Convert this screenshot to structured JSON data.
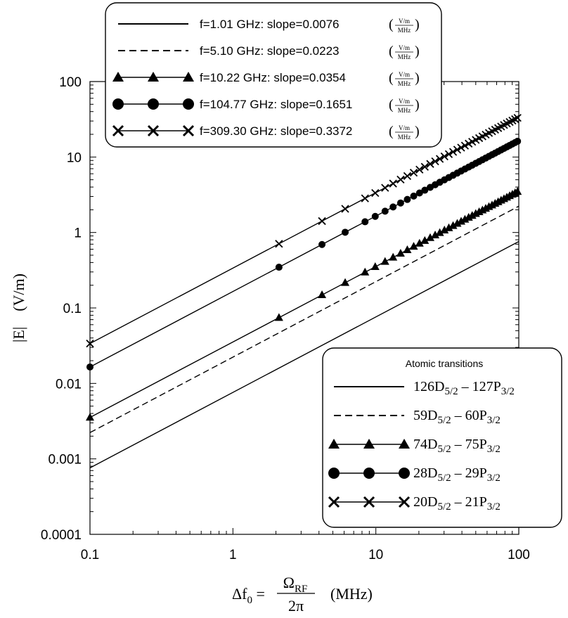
{
  "chart_data": {
    "type": "line",
    "xscale": "log",
    "yscale": "log",
    "xlim": [
      0.1,
      100
    ],
    "ylim": [
      0.0001,
      100
    ],
    "x_ticks": [
      "0.1",
      "1",
      "10",
      "100"
    ],
    "y_ticks": [
      "0.0001",
      "0.001",
      "0.01",
      "0.1",
      "1",
      "10",
      "100"
    ],
    "xlabel": {
      "prefix": "Δf",
      "sub": "0",
      "equals": "=",
      "num": "Ω",
      "num_sub": "RF",
      "den": "2π",
      "unit": "(MHz)"
    },
    "ylabel": "|E|    (V/m)",
    "marker_x": [
      2.1,
      4.2,
      6.1,
      8.4,
      9.9,
      11.6,
      13.2,
      14.9,
      16.6,
      18.4,
      20.2,
      22.0,
      24.0,
      26.0,
      28.0,
      30.2,
      32.4,
      34.7,
      37.1,
      39.5,
      42.0,
      44.6,
      47.2,
      50.0,
      52.8,
      55.7,
      58.7,
      61.8,
      65.0,
      68.3,
      71.7,
      75.2,
      78.8,
      82.5,
      86.3,
      90.2,
      94.2,
      98.0
    ],
    "series": [
      {
        "name": "f=1.01 GHz",
        "slope": "0.0076",
        "transition": "126D5/2 – 127P3/2",
        "style": "solid",
        "marker": "none",
        "x": [
          0.1,
          100
        ],
        "y": [
          0.00076,
          0.76
        ]
      },
      {
        "name": "f=5.10 GHz",
        "slope": "0.0223",
        "transition": "59D5/2 – 60P3/2",
        "style": "dashed",
        "marker": "none",
        "x": [
          0.1,
          100
        ],
        "y": [
          0.00223,
          2.23
        ]
      },
      {
        "name": "f=10.22 GHz",
        "slope": "0.0354",
        "transition": "74D5/2 – 75P3/2",
        "style": "solid",
        "marker": "triangle",
        "x": [
          0.1,
          100
        ],
        "y": [
          0.00354,
          3.54
        ]
      },
      {
        "name": "f=104.77 GHz",
        "slope": "0.1651",
        "transition": "28D5/2 – 29P3/2",
        "style": "solid",
        "marker": "circle",
        "x": [
          0.1,
          100
        ],
        "y": [
          0.01651,
          16.51
        ]
      },
      {
        "name": "f=309.30 GHz",
        "slope": "0.3372",
        "transition": "20D5/2 – 21P3/2",
        "style": "solid",
        "marker": "cross",
        "x": [
          0.1,
          100
        ],
        "y": [
          0.03372,
          33.72
        ]
      }
    ],
    "legend_top": {
      "placement": "top-left",
      "entries": [
        {
          "text": "f=1.01 GHz: slope=0.0076"
        },
        {
          "text": "f=5.10 GHz: slope=0.0223"
        },
        {
          "text": "f=10.22 GHz: slope=0.0354"
        },
        {
          "text": "f=104.77 GHz: slope=0.1651"
        },
        {
          "text": "f=309.30 GHz: slope=0.3372"
        }
      ],
      "unit_num": "V/m",
      "unit_den": "MHz"
    },
    "legend_bottom": {
      "placement": "bottom-right",
      "title": "Atomic transitions",
      "entries": [
        {
          "a": "126D",
          "a_sub": "5/2",
          "dash": " – ",
          "b": "127P",
          "b_sub": "3/2"
        },
        {
          "a": "59D",
          "a_sub": "5/2",
          "dash": " – ",
          "b": "60P",
          "b_sub": "3/2"
        },
        {
          "a": "74D",
          "a_sub": "5/2",
          "dash": " – ",
          "b": "75P",
          "b_sub": "3/2"
        },
        {
          "a": "28D",
          "a_sub": "5/2",
          "dash": " – ",
          "b": "29P",
          "b_sub": "3/2"
        },
        {
          "a": "20D",
          "a_sub": "5/2",
          "dash": " – ",
          "b": "21P",
          "b_sub": "3/2"
        }
      ]
    }
  }
}
